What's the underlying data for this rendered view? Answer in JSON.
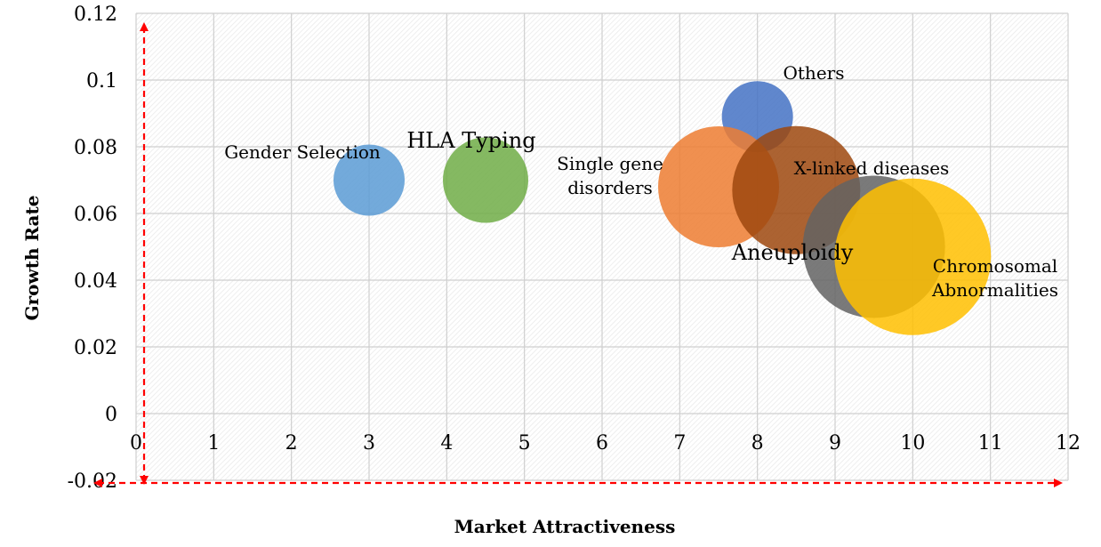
{
  "chart_data": {
    "type": "bubble",
    "xlabel": "Market Attractiveness",
    "ylabel": "Growth Rate",
    "xlim": [
      0,
      12
    ],
    "ylim": [
      -0.02,
      0.12
    ],
    "x_ticks": [
      "0",
      "1",
      "2",
      "3",
      "4",
      "5",
      "6",
      "7",
      "8",
      "9",
      "10",
      "11",
      "12"
    ],
    "y_ticks": [
      "-0.02",
      "0",
      "0.02",
      "0.04",
      "0.06",
      "0.08",
      "0.1",
      "0.12"
    ],
    "grid": true,
    "series": [
      {
        "name": "Gender Selection",
        "x": 3,
        "y": 0.07,
        "size": 1.0,
        "color": "#5b9bd5"
      },
      {
        "name": "HLA Typing",
        "x": 4.5,
        "y": 0.07,
        "size": 1.2,
        "color": "#70ad47"
      },
      {
        "name": "Others",
        "x": 8,
        "y": 0.089,
        "size": 1.0,
        "color": "#4472c4"
      },
      {
        "name": "Single gene disorders",
        "x": 7.5,
        "y": 0.068,
        "size": 1.7,
        "color": "#ed7d31"
      },
      {
        "name": "X-linked diseases",
        "x": 8.5,
        "y": 0.067,
        "size": 1.8,
        "color": "#9e480e"
      },
      {
        "name": "Aneuploidy",
        "x": 9.5,
        "y": 0.05,
        "size": 2.0,
        "color": "#636363"
      },
      {
        "name": "Chromosomal Abnormalities",
        "x": 10,
        "y": 0.047,
        "size": 2.2,
        "color": "#ffc000"
      }
    ],
    "labels": {
      "Gender Selection": [
        "Gender Selection"
      ],
      "HLA Typing": [
        "HLA Typing"
      ],
      "Others": [
        "Others"
      ],
      "Single gene disorders": [
        "Single gene",
        "disorders"
      ],
      "X-linked diseases": [
        "X-linked diseases"
      ],
      "Aneuploidy": [
        "Aneuploidy"
      ],
      "Chromosomal Abnormalities": [
        "Chromosomal",
        "Abnormalities"
      ]
    },
    "colors": {
      "guide_arrow": "#ff0000",
      "grid": "#cfcfcf"
    }
  }
}
